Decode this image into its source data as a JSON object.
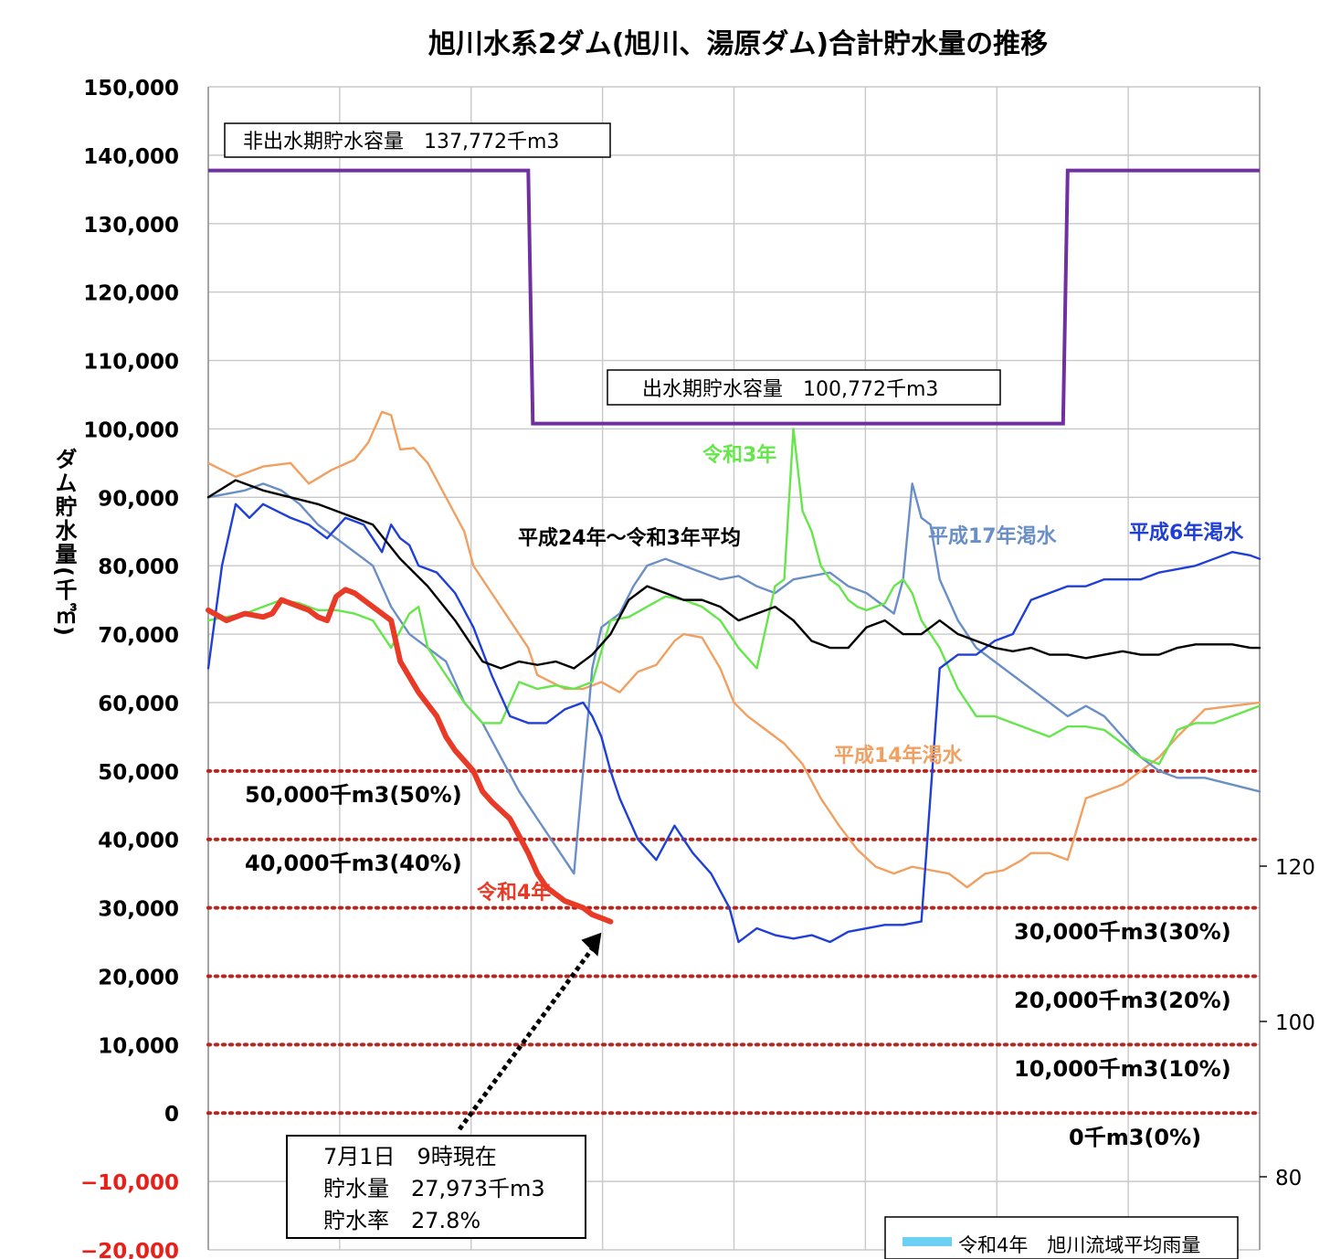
{
  "chart_data": {
    "type": "line",
    "title": "旭川水系2ダム(旭川、湯原ダム)合計貯水量の推移",
    "ylabel": "ダム貯水量(千㎥)",
    "ylim": [
      -20000,
      150000
    ],
    "yticks": [
      "150,000",
      "140,000",
      "130,000",
      "120,000",
      "110,000",
      "100,000",
      "90,000",
      "80,000",
      "70,000",
      "60,000",
      "50,000",
      "40,000",
      "30,000",
      "20,000",
      "10,000",
      "0",
      "−10,000",
      "−20,000"
    ],
    "yticks_negative_color": "#e8201a",
    "secondary_yticks": [
      "120",
      "100",
      "80"
    ],
    "grid": true,
    "capacity_line": {
      "color": "#7030a0",
      "x": [
        0,
        70,
        71,
        187,
        188,
        230
      ],
      "y": [
        137772,
        137772,
        100772,
        100772,
        137772,
        137772
      ],
      "labels": [
        "非出水期貯水容量　137,772千m3",
        "出水期貯水容量　100,772千m3"
      ]
    },
    "reference_lines": {
      "color": "#b3261e",
      "values": [
        50000,
        40000,
        30000,
        20000,
        10000,
        0
      ],
      "labels": [
        "50,000千m3(50%)",
        "40,000千m3(40%)",
        "30,000千m3(30%)",
        "20,000千m3(20%)",
        "10,000千m3(10%)",
        "0千m3(0%)"
      ]
    },
    "series": [
      {
        "name": "平成14年渇水",
        "color": "#f0a060",
        "x": [
          0,
          6,
          12,
          18,
          22,
          27,
          32,
          35,
          38,
          40,
          42,
          45,
          48,
          52,
          56,
          58,
          63,
          68,
          70,
          72,
          75,
          78,
          82,
          86,
          90,
          94,
          98,
          102,
          104,
          108,
          112,
          115,
          118,
          122,
          126,
          130,
          134,
          138,
          142,
          146,
          150,
          154,
          158,
          162,
          166,
          170,
          174,
          178,
          180,
          184,
          188,
          192,
          196,
          200,
          204,
          208,
          212,
          218,
          224,
          230
        ],
        "y": [
          95000,
          93000,
          94500,
          95000,
          92000,
          94000,
          95500,
          98000,
          102500,
          102000,
          97000,
          97200,
          95000,
          90000,
          85000,
          80000,
          75000,
          70000,
          68000,
          64000,
          63000,
          62000,
          62000,
          63000,
          61500,
          64500,
          65500,
          69000,
          70000,
          69500,
          65000,
          60000,
          58000,
          56000,
          54000,
          51000,
          46000,
          42000,
          38500,
          36000,
          35000,
          36000,
          35500,
          35000,
          33000,
          35000,
          35500,
          37000,
          38000,
          38000,
          37000,
          46000,
          47000,
          48000,
          50000,
          52000,
          55000,
          59000,
          59500,
          60000
        ]
      },
      {
        "name": "平成17年渇水",
        "color": "#6a8fc6",
        "x": [
          0,
          4,
          8,
          12,
          16,
          20,
          24,
          28,
          32,
          36,
          40,
          44,
          48,
          52,
          56,
          60,
          64,
          68,
          72,
          76,
          80,
          84,
          86,
          88,
          90,
          93,
          96,
          100,
          104,
          108,
          112,
          116,
          120,
          124,
          128,
          132,
          136,
          140,
          144,
          148,
          150,
          152,
          154,
          156,
          158,
          160,
          164,
          168,
          172,
          176,
          180,
          184,
          188,
          192,
          196,
          200,
          204,
          208,
          212,
          218,
          224,
          230
        ],
        "y": [
          90000,
          90500,
          91000,
          92000,
          91000,
          89000,
          86000,
          84000,
          82000,
          80000,
          74000,
          70000,
          68000,
          66000,
          60000,
          57000,
          52000,
          47000,
          43000,
          39000,
          35000,
          65000,
          71000,
          72000,
          73000,
          77000,
          80000,
          81000,
          80000,
          79000,
          78000,
          78500,
          77000,
          76000,
          78000,
          78500,
          79000,
          77000,
          76000,
          74000,
          73000,
          78000,
          92000,
          87000,
          86000,
          78000,
          72000,
          68000,
          66000,
          64000,
          62000,
          60000,
          58000,
          59500,
          58000,
          55000,
          52000,
          50000,
          49000,
          49000,
          48000,
          47000
        ]
      },
      {
        "name": "令和3年",
        "color": "#66e64c",
        "x": [
          0,
          4,
          8,
          12,
          16,
          20,
          24,
          28,
          32,
          36,
          40,
          44,
          46,
          48,
          52,
          56,
          60,
          64,
          68,
          72,
          76,
          80,
          84,
          88,
          92,
          96,
          100,
          104,
          108,
          112,
          116,
          120,
          124,
          126,
          128,
          130,
          132,
          134,
          136,
          138,
          140,
          142,
          144,
          146,
          148,
          150,
          152,
          154,
          156,
          158,
          160,
          164,
          168,
          172,
          176,
          180,
          184,
          188,
          192,
          196,
          200,
          204,
          208,
          212,
          216,
          220,
          224,
          230
        ],
        "y": [
          72000,
          72500,
          73000,
          74000,
          75000,
          74500,
          73500,
          73500,
          73000,
          72000,
          68000,
          73000,
          74000,
          68000,
          64000,
          60000,
          57000,
          57000,
          63000,
          62000,
          62500,
          62000,
          63000,
          72000,
          72500,
          74000,
          75500,
          75000,
          74000,
          72000,
          68000,
          65000,
          77000,
          78000,
          100000,
          88000,
          85000,
          80000,
          78000,
          77000,
          75000,
          74000,
          73500,
          74000,
          74500,
          77000,
          78000,
          76000,
          72000,
          70000,
          68000,
          62000,
          58000,
          58000,
          57000,
          56000,
          55000,
          56500,
          56500,
          56000,
          54000,
          52000,
          51000,
          56000,
          57000,
          57000,
          58000,
          59500
        ]
      },
      {
        "name": "平成6年渇水",
        "color": "#1f3fd6",
        "x": [
          0,
          3,
          6,
          9,
          12,
          15,
          18,
          22,
          26,
          30,
          34,
          38,
          40,
          42,
          44,
          46,
          50,
          54,
          58,
          62,
          66,
          70,
          74,
          78,
          82,
          84,
          86,
          88,
          90,
          94,
          98,
          102,
          106,
          110,
          114,
          116,
          118,
          120,
          124,
          128,
          132,
          136,
          140,
          144,
          148,
          152,
          156,
          160,
          164,
          168,
          170,
          172,
          176,
          180,
          184,
          188,
          192,
          196,
          200,
          204,
          208,
          212,
          216,
          220,
          224,
          228,
          230
        ],
        "y": [
          65000,
          80000,
          89000,
          87000,
          89000,
          88000,
          87000,
          86000,
          84000,
          87000,
          86000,
          82000,
          86000,
          84000,
          83000,
          80000,
          79000,
          76000,
          71000,
          64000,
          58000,
          57000,
          57000,
          59000,
          60000,
          58000,
          55000,
          50000,
          46000,
          40000,
          37000,
          42000,
          38000,
          35000,
          30000,
          25000,
          26000,
          27000,
          26000,
          25500,
          26000,
          25000,
          26500,
          27000,
          27500,
          27500,
          28000,
          65000,
          67000,
          67000,
          68000,
          69000,
          70000,
          75000,
          76000,
          77000,
          77000,
          78000,
          78000,
          78000,
          79000,
          79500,
          80000,
          81000,
          82000,
          81500,
          81000
        ]
      },
      {
        "name": "平成24年～令和3年平均",
        "color": "#000000",
        "x": [
          0,
          6,
          12,
          18,
          24,
          30,
          36,
          42,
          48,
          54,
          60,
          64,
          68,
          72,
          76,
          80,
          84,
          88,
          92,
          96,
          100,
          104,
          108,
          112,
          116,
          120,
          124,
          128,
          132,
          136,
          140,
          144,
          148,
          152,
          156,
          160,
          164,
          168,
          172,
          176,
          180,
          184,
          188,
          192,
          196,
          200,
          204,
          208,
          212,
          216,
          220,
          224,
          228,
          230
        ],
        "y": [
          90000,
          92500,
          91000,
          90000,
          89000,
          87500,
          86000,
          81000,
          77000,
          72000,
          66000,
          65000,
          66000,
          65500,
          66000,
          65000,
          67000,
          70000,
          75000,
          77000,
          76000,
          75000,
          75000,
          74000,
          72000,
          73000,
          74000,
          72000,
          69000,
          68000,
          68000,
          71000,
          72000,
          70000,
          70000,
          72000,
          70000,
          69000,
          68000,
          67500,
          68000,
          67000,
          67000,
          66500,
          67000,
          67500,
          67000,
          67000,
          68000,
          68500,
          68500,
          68500,
          68000,
          68000
        ]
      },
      {
        "name": "令和4年",
        "color": "#e83a26",
        "x": [
          0,
          4,
          8,
          12,
          14,
          16,
          18,
          20,
          22,
          24,
          26,
          28,
          30,
          32,
          34,
          36,
          40,
          42,
          46,
          50,
          52,
          54,
          58,
          60,
          62,
          66,
          70,
          72,
          74,
          78,
          82,
          84,
          86,
          88
        ],
        "y": [
          73500,
          72000,
          73000,
          72500,
          73000,
          75000,
          74500,
          74000,
          73500,
          72500,
          72000,
          75500,
          76500,
          76000,
          75000,
          74000,
          72000,
          66000,
          61500,
          58000,
          55000,
          53000,
          50000,
          47000,
          45500,
          43000,
          38000,
          35000,
          33000,
          31000,
          30000,
          29000,
          28500,
          27973
        ]
      }
    ],
    "series_labels": [
      "平成14年渇水",
      "平成17年渇水",
      "令和3年",
      "平成6年渇水",
      "平成24年～令和3年平均",
      "令和4年"
    ],
    "annotation": {
      "lines": [
        "7月1日　9時現在",
        "貯水量　27,973千m3",
        "貯水率　27.8%"
      ],
      "target": [
        88,
        27973
      ]
    },
    "legend": {
      "items": [
        {
          "label": "令和4年　旭川流域平均雨量",
          "color": "#6cd0f5"
        }
      ],
      "placement": "bottom-right"
    }
  }
}
